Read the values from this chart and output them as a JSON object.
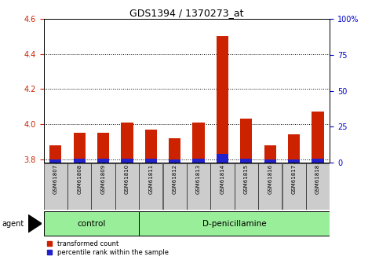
{
  "title": "GDS1394 / 1370273_at",
  "samples": [
    "GSM61807",
    "GSM61808",
    "GSM61809",
    "GSM61810",
    "GSM61811",
    "GSM61812",
    "GSM61813",
    "GSM61814",
    "GSM61815",
    "GSM61816",
    "GSM61817",
    "GSM61818"
  ],
  "transformed_count": [
    3.88,
    3.95,
    3.95,
    4.01,
    3.97,
    3.92,
    4.01,
    4.5,
    4.03,
    3.88,
    3.94,
    4.07
  ],
  "percentile_rank": [
    2,
    3,
    3,
    3,
    3,
    2,
    3,
    6,
    3,
    2,
    2,
    3
  ],
  "ylim_left": [
    3.78,
    4.6
  ],
  "ylim_right": [
    0,
    100
  ],
  "yticks_left": [
    3.8,
    4.0,
    4.2,
    4.4,
    4.6
  ],
  "yticks_right": [
    0,
    25,
    50,
    75,
    100
  ],
  "bar_base": 3.78,
  "control_group": [
    "GSM61807",
    "GSM61808",
    "GSM61809",
    "GSM61810"
  ],
  "treatment_group": [
    "GSM61811",
    "GSM61812",
    "GSM61813",
    "GSM61814",
    "GSM61815",
    "GSM61816",
    "GSM61817",
    "GSM61818"
  ],
  "control_label": "control",
  "treatment_label": "D-penicillamine",
  "agent_label": "agent",
  "legend_red": "transformed count",
  "legend_blue": "percentile rank within the sample",
  "red_color": "#cc2200",
  "blue_color": "#2222cc",
  "bar_width": 0.5,
  "background_color": "#ffffff",
  "plot_bg": "#ffffff",
  "grid_color": "#000000",
  "tick_label_color_left": "#cc2200",
  "tick_label_color_right": "#0000cc",
  "group_box_color": "#99ee99",
  "sample_box_color": "#cccccc",
  "title_fontsize": 9,
  "tick_fontsize": 7,
  "sample_fontsize": 5,
  "group_fontsize": 7.5,
  "legend_fontsize": 6,
  "agent_fontsize": 7
}
